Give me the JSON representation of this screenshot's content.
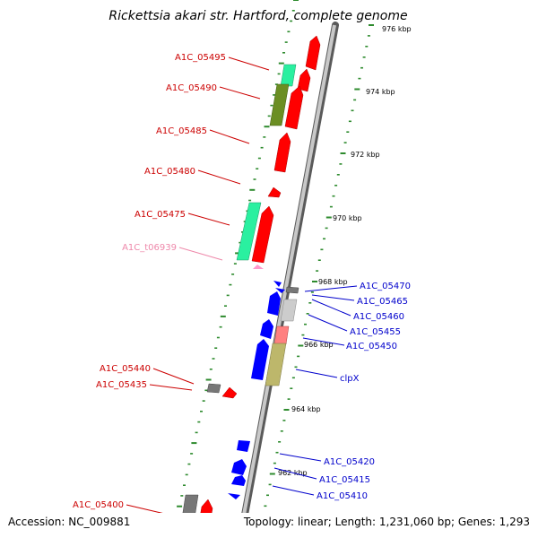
{
  "header": {
    "title": "Rickettsia akari str. Hartford, complete genome"
  },
  "footer": {
    "accession": "Accession: NC_009881",
    "summary": "Topology: linear; Length: 1,231,060 bp; Genes: 1,293"
  },
  "colors": {
    "backbone": "#8c8c8c",
    "tick_dots": "#2e8b2e",
    "forward_label": "#cc0000",
    "reverse_label": "#0000cc",
    "trna_label": "#ee88aa",
    "red": "#ff0000",
    "blue": "#0000ff",
    "aqua": "#2af0a0",
    "olive": "#6b8e23",
    "khaki": "#bdb76b",
    "grey": "#777777",
    "lightgrey": "#cccccc",
    "salmon": "#ff8080",
    "pink": "#ff99cc"
  },
  "ruler": [
    {
      "label": "976 kbp"
    },
    {
      "label": "974 kbp"
    },
    {
      "label": "972 kbp"
    },
    {
      "label": "970 kbp"
    },
    {
      "label": "968 kbp"
    },
    {
      "label": "966 kbp"
    },
    {
      "label": "964 kbp"
    },
    {
      "label": "962 kbp"
    }
  ],
  "forward_labels": [
    {
      "label": "A1C_05495",
      "color": "forward"
    },
    {
      "label": "A1C_05490",
      "color": "forward"
    },
    {
      "label": "A1C_05485",
      "color": "forward"
    },
    {
      "label": "A1C_05480",
      "color": "forward"
    },
    {
      "label": "A1C_05475",
      "color": "forward"
    },
    {
      "label": "A1C_t06939",
      "color": "trna"
    },
    {
      "label": "A1C_05440",
      "color": "forward"
    },
    {
      "label": "A1C_05435",
      "color": "forward"
    },
    {
      "label": "A1C_05400",
      "color": "forward"
    }
  ],
  "reverse_labels": [
    {
      "label": "A1C_05470"
    },
    {
      "label": "A1C_05465"
    },
    {
      "label": "A1C_05460"
    },
    {
      "label": "A1C_05455"
    },
    {
      "label": "A1C_05450"
    },
    {
      "label": "clpX"
    },
    {
      "label": "A1C_05420"
    },
    {
      "label": "A1C_05415"
    },
    {
      "label": "A1C_05410"
    }
  ]
}
